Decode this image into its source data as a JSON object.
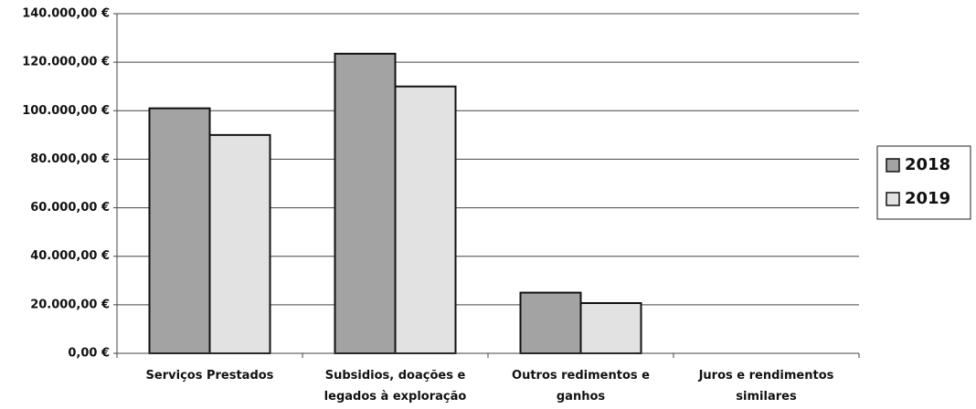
{
  "chart_data": {
    "type": "bar",
    "categories": [
      "Serviços Prestados",
      "Subsidios, doações e legados à exploração",
      "Outros redimentos e ganhos",
      "Juros e rendimentos similares"
    ],
    "series": [
      {
        "name": "2018",
        "color": "#a3a3a3",
        "values": [
          101000,
          123500,
          25000,
          0
        ]
      },
      {
        "name": "2019",
        "color": "#e2e2e2",
        "values": [
          90000,
          110000,
          20700,
          0
        ]
      }
    ],
    "ylim": [
      0,
      140000
    ],
    "yticks": [
      {
        "value": 0,
        "label": "0,00 €"
      },
      {
        "value": 20000,
        "label": "20.000,00 €"
      },
      {
        "value": 40000,
        "label": "40.000,00 €"
      },
      {
        "value": 60000,
        "label": "60.000,00 €"
      },
      {
        "value": 80000,
        "label": "80.000,00 €"
      },
      {
        "value": 100000,
        "label": "100.000,00 €"
      },
      {
        "value": 120000,
        "label": "120.000,00 €"
      },
      {
        "value": 140000,
        "label": "140.000,00 €"
      }
    ],
    "grid": true
  }
}
